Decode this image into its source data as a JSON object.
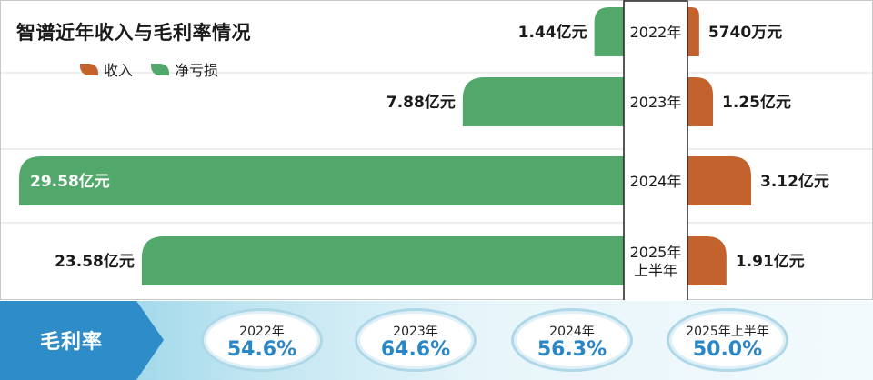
{
  "title": "智谱近年收入与毛利率情况",
  "legend": [
    {
      "label": "收入",
      "color": "#c4622e"
    },
    {
      "label": "净亏损",
      "color": "#52a86a"
    }
  ],
  "chart_data": {
    "type": "bar",
    "categories": [
      "2022年",
      "2023年",
      "2024年",
      "2025年上半年"
    ],
    "category_lines": [
      [
        "2022年"
      ],
      [
        "2023年"
      ],
      [
        "2024年"
      ],
      [
        "2025年",
        "上半年"
      ]
    ],
    "series": [
      {
        "name": "收入",
        "unit": "亿元",
        "values": [
          0.574,
          1.25,
          3.12,
          1.91
        ],
        "labels": [
          "5740万元",
          "1.25亿元",
          "3.12亿元",
          "1.91亿元"
        ],
        "color": "#c4622e"
      },
      {
        "name": "净亏损",
        "unit": "亿元",
        "values": [
          1.44,
          7.88,
          29.58,
          23.58
        ],
        "labels": [
          "1.44亿元",
          "7.88亿元",
          "29.58亿元",
          "23.58亿元"
        ],
        "color": "#52a86a"
      }
    ]
  },
  "gross_margin": {
    "label": "毛利率",
    "items": [
      {
        "year": "2022年",
        "value": "54.6%"
      },
      {
        "year": "2023年",
        "value": "64.6%"
      },
      {
        "year": "2024年",
        "value": "56.3%"
      },
      {
        "year": "2025年上半年",
        "value": "50.0%"
      }
    ]
  }
}
